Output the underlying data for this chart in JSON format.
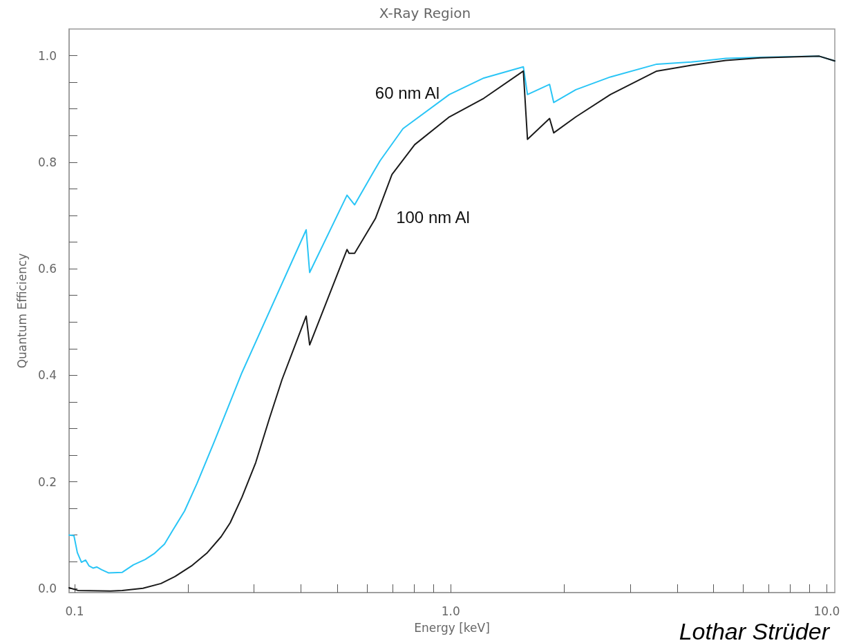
{
  "chart_data": {
    "type": "line",
    "title": "X-Ray Region",
    "xlabel": "Energy [keV]",
    "ylabel": "Quantum Efficiency",
    "log": "x",
    "grid": false,
    "legend": false,
    "marker": "none",
    "line_style": "solid",
    "xlim": [
      0.0967,
      10.5
    ],
    "ylim": [
      -0.008,
      1.05
    ],
    "xticks": [
      {
        "value": 0.1,
        "label": "0.1"
      },
      {
        "value": 0.2,
        "label": null
      },
      {
        "value": 0.3,
        "label": null
      },
      {
        "value": 0.4,
        "label": null
      },
      {
        "value": 0.5,
        "label": null
      },
      {
        "value": 0.6,
        "label": null
      },
      {
        "value": 0.7,
        "label": null
      },
      {
        "value": 0.8,
        "label": null
      },
      {
        "value": 0.9,
        "label": null
      },
      {
        "value": 1,
        "label": "1.0"
      },
      {
        "value": 2,
        "label": null
      },
      {
        "value": 3,
        "label": null
      },
      {
        "value": 4,
        "label": null
      },
      {
        "value": 5,
        "label": null
      },
      {
        "value": 6,
        "label": null
      },
      {
        "value": 7,
        "label": null
      },
      {
        "value": 8,
        "label": null
      },
      {
        "value": 9,
        "label": null
      },
      {
        "value": 10,
        "label": "10.0"
      }
    ],
    "yticks": [
      {
        "value": 0,
        "label": "0.0"
      },
      {
        "value": 0.05,
        "label": null
      },
      {
        "value": 0.1,
        "label": null
      },
      {
        "value": 0.15,
        "label": null
      },
      {
        "value": 0.2,
        "label": "0.2"
      },
      {
        "value": 0.25,
        "label": null
      },
      {
        "value": 0.3,
        "label": null
      },
      {
        "value": 0.35,
        "label": null
      },
      {
        "value": 0.4,
        "label": "0.4"
      },
      {
        "value": 0.45,
        "label": null
      },
      {
        "value": 0.5,
        "label": null
      },
      {
        "value": 0.55,
        "label": null
      },
      {
        "value": 0.6,
        "label": "0.6"
      },
      {
        "value": 0.65,
        "label": null
      },
      {
        "value": 0.7,
        "label": null
      },
      {
        "value": 0.75,
        "label": null
      },
      {
        "value": 0.8,
        "label": "0.8"
      },
      {
        "value": 0.85,
        "label": null
      },
      {
        "value": 0.9,
        "label": null
      },
      {
        "value": 0.95,
        "label": null
      },
      {
        "value": 1,
        "label": "1.0"
      }
    ],
    "series": [
      {
        "name": "60 nm Al",
        "color": "#29c5f6",
        "x": [
          0.0967,
          0.0996,
          0.1017,
          0.1043,
          0.107,
          0.1093,
          0.1121,
          0.1145,
          0.118,
          0.123,
          0.1339,
          0.1433,
          0.154,
          0.1627,
          0.1734,
          0.1824,
          0.196,
          0.2116,
          0.2351,
          0.2559,
          0.2786,
          0.4128,
          0.4217,
          0.53,
          0.5553,
          0.6225,
          0.6494,
          0.7467,
          0.9915,
          1.225,
          1.56,
          1.6,
          1.832,
          1.879,
          2.151,
          2.658,
          3.53,
          4.363,
          5.389,
          6.661,
          9.546,
          10.5
        ],
        "values": [
          0.1,
          0.099,
          0.067,
          0.049,
          0.053,
          0.042,
          0.038,
          0.04,
          0.035,
          0.029,
          0.03,
          0.044,
          0.054,
          0.065,
          0.083,
          0.109,
          0.145,
          0.197,
          0.275,
          0.34,
          0.405,
          0.673,
          0.593,
          0.738,
          0.72,
          0.781,
          0.803,
          0.863,
          0.927,
          0.958,
          0.979,
          0.927,
          0.946,
          0.912,
          0.936,
          0.96,
          0.984,
          0.988,
          0.995,
          0.997,
          0.999,
          0.99
        ]
      },
      {
        "name": "100 nm Al",
        "color": "#1a1a1a",
        "x": [
          0.0967,
          0.1021,
          0.1246,
          0.1339,
          0.152,
          0.1697,
          0.1847,
          0.2045,
          0.2254,
          0.2453,
          0.2592,
          0.2786,
          0.3031,
          0.33,
          0.3561,
          0.4128,
          0.4217,
          0.53,
          0.5368,
          0.5553,
          0.6305,
          0.698,
          0.8023,
          0.9915,
          1.225,
          1.56,
          1.6,
          1.832,
          1.879,
          2.151,
          2.658,
          3.53,
          4.363,
          5.389,
          6.661,
          9.546,
          10.5
        ],
        "values": [
          0.001,
          -0.004,
          -0.005,
          -0.004,
          0,
          0.009,
          0.022,
          0.042,
          0.067,
          0.097,
          0.123,
          0.171,
          0.236,
          0.32,
          0.392,
          0.511,
          0.457,
          0.636,
          0.629,
          0.629,
          0.694,
          0.777,
          0.833,
          0.885,
          0.92,
          0.971,
          0.843,
          0.882,
          0.855,
          0.885,
          0.927,
          0.971,
          0.982,
          0.991,
          0.996,
          0.999,
          0.99
        ]
      }
    ],
    "annotations": [
      "Lothar Strüder"
    ]
  }
}
